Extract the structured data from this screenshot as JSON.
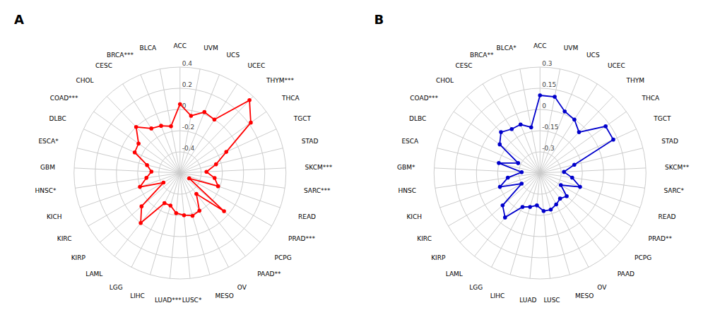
{
  "chart_data": [
    {
      "type": "radar",
      "title": "A",
      "categories": [
        "ACC",
        "UVM",
        "UCS",
        "UCEC",
        "THYM***",
        "THCA",
        "TGCT",
        "STAD",
        "SKCM***",
        "SARC***",
        "READ",
        "PRAD***",
        "PCPG",
        "PAAD**",
        "OV",
        "MESO",
        "LUSC*",
        "LUAD***",
        "LIHC",
        "LGG",
        "LAML",
        "KIRP",
        "KIRC",
        "KICH",
        "HNSC*",
        "GBM",
        "ESCA*",
        "DLBC",
        "COAD***",
        "CHOL",
        "CESC",
        "BRCA***",
        "BLCA"
      ],
      "values": [
        0.05,
        -0.05,
        0.02,
        0.0,
        0.35,
        0.22,
        -0.12,
        -0.25,
        -0.35,
        -0.27,
        -0.22,
        -0.5,
        -0.05,
        -0.35,
        -0.2,
        -0.18,
        -0.2,
        -0.22,
        -0.28,
        -0.28,
        0.0,
        -0.12,
        -0.42,
        -0.2,
        -0.28,
        -0.33,
        -0.28,
        -0.13,
        -0.12,
        0.0,
        -0.1,
        -0.12,
        -0.15
      ],
      "color": "#FF0000",
      "ylim": [
        -0.6,
        0.4
      ],
      "yticks": [
        -0.4,
        -0.2,
        0,
        0.2,
        0.4
      ],
      "grid": true
    },
    {
      "type": "radar",
      "title": "B",
      "categories": [
        "ACC",
        "UVM",
        "UCS",
        "UCEC",
        "THYM",
        "THCA",
        "TGCT",
        "STAD",
        "SKCM**",
        "SARC*",
        "READ",
        "PRAD**",
        "PCPG",
        "PAAD",
        "OV",
        "MESO",
        "LUSC",
        "LUAD",
        "LIHC",
        "LGG",
        "LAML",
        "KIRP",
        "KIRC",
        "KICH",
        "HNSC",
        "GBM*",
        "ESCA",
        "DLBC",
        "COAD***",
        "CHOL",
        "CESC",
        "BRCA**",
        "BLCA*"
      ],
      "values": [
        0.1,
        0.1,
        0.02,
        0.0,
        -0.05,
        0.12,
        0.12,
        -0.2,
        -0.28,
        -0.22,
        -0.15,
        -0.28,
        -0.2,
        -0.22,
        -0.2,
        -0.18,
        -0.18,
        -0.22,
        -0.2,
        -0.18,
        -0.05,
        -0.1,
        -0.3,
        -0.15,
        -0.22,
        -0.32,
        -0.15,
        -0.28,
        -0.1,
        -0.05,
        -0.08,
        -0.08,
        -0.12
      ],
      "color": "#0000CC",
      "ylim": [
        -0.45,
        0.3
      ],
      "yticks": [
        -0.3,
        -0.15,
        0,
        0.15,
        0.3
      ],
      "grid": true
    }
  ]
}
